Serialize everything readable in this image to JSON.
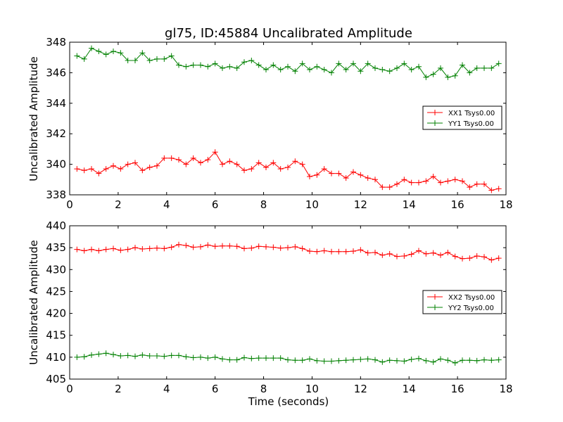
{
  "chart_data": [
    {
      "type": "line",
      "title": "gl75, ID:45884 Uncalibrated Amplitude",
      "xlabel": "",
      "ylabel": "Uncalibrated Amplitude",
      "xlim": [
        0,
        18
      ],
      "ylim": [
        338,
        348
      ],
      "xticks": [
        0,
        2,
        4,
        6,
        8,
        10,
        12,
        14,
        16,
        18
      ],
      "yticks": [
        338,
        340,
        342,
        344,
        346,
        348
      ],
      "legend_position": "center-right",
      "grid": false,
      "x": [
        0.3,
        0.6,
        0.9,
        1.2,
        1.5,
        1.8,
        2.1,
        2.4,
        2.7,
        3.0,
        3.3,
        3.6,
        3.9,
        4.2,
        4.5,
        4.8,
        5.1,
        5.4,
        5.7,
        6.0,
        6.3,
        6.6,
        6.9,
        7.2,
        7.5,
        7.8,
        8.1,
        8.4,
        8.7,
        9.0,
        9.3,
        9.6,
        9.9,
        10.2,
        10.5,
        10.8,
        11.1,
        11.4,
        11.7,
        12.0,
        12.3,
        12.6,
        12.9,
        13.2,
        13.5,
        13.8,
        14.1,
        14.4,
        14.7,
        15.0,
        15.3,
        15.6,
        15.9,
        16.2,
        16.5,
        16.8,
        17.1,
        17.4,
        17.7
      ],
      "series": [
        {
          "name": "XX1 Tsys0.00",
          "color": "#ff0000",
          "values": [
            339.7,
            339.6,
            339.7,
            339.4,
            339.7,
            339.9,
            339.7,
            340.0,
            340.1,
            339.6,
            339.8,
            339.9,
            340.4,
            340.4,
            340.3,
            340.0,
            340.4,
            340.1,
            340.3,
            340.8,
            340.0,
            340.2,
            340.0,
            339.6,
            339.7,
            340.1,
            339.8,
            340.1,
            339.7,
            339.8,
            340.2,
            340.0,
            339.2,
            339.3,
            339.7,
            339.4,
            339.4,
            339.1,
            339.5,
            339.3,
            339.1,
            339.0,
            338.5,
            338.5,
            338.7,
            339.0,
            338.8,
            338.8,
            338.9,
            339.2,
            338.8,
            338.9,
            339.0,
            338.9,
            338.5,
            338.7,
            338.7,
            338.3,
            338.4
          ]
        },
        {
          "name": "YY1 Tsys0.00",
          "color": "#008000",
          "values": [
            347.1,
            346.9,
            347.6,
            347.4,
            347.2,
            347.4,
            347.3,
            346.8,
            346.8,
            347.3,
            346.8,
            346.9,
            346.9,
            347.1,
            346.5,
            346.4,
            346.5,
            346.5,
            346.4,
            346.6,
            346.3,
            346.4,
            346.3,
            346.7,
            346.8,
            346.5,
            346.2,
            346.5,
            346.2,
            346.4,
            346.1,
            346.6,
            346.2,
            346.4,
            346.2,
            346.0,
            346.6,
            346.2,
            346.6,
            346.1,
            346.6,
            346.3,
            346.2,
            346.1,
            346.3,
            346.6,
            346.2,
            346.4,
            345.7,
            345.9,
            346.3,
            345.7,
            345.8,
            346.5,
            346.0,
            346.3,
            346.3,
            346.3,
            346.6
          ]
        }
      ]
    },
    {
      "type": "line",
      "title": "",
      "xlabel": "Time (seconds)",
      "ylabel": "Uncalibrated Amplitude",
      "xlim": [
        0,
        18
      ],
      "ylim": [
        405,
        440
      ],
      "xticks": [
        0,
        2,
        4,
        6,
        8,
        10,
        12,
        14,
        16,
        18
      ],
      "yticks": [
        405,
        410,
        415,
        420,
        425,
        430,
        435,
        440
      ],
      "legend_position": "center-right",
      "grid": false,
      "x": [
        0.3,
        0.6,
        0.9,
        1.2,
        1.5,
        1.8,
        2.1,
        2.4,
        2.7,
        3.0,
        3.3,
        3.6,
        3.9,
        4.2,
        4.5,
        4.8,
        5.1,
        5.4,
        5.7,
        6.0,
        6.3,
        6.6,
        6.9,
        7.2,
        7.5,
        7.8,
        8.1,
        8.4,
        8.7,
        9.0,
        9.3,
        9.6,
        9.9,
        10.2,
        10.5,
        10.8,
        11.1,
        11.4,
        11.7,
        12.0,
        12.3,
        12.6,
        12.9,
        13.2,
        13.5,
        13.8,
        14.1,
        14.4,
        14.7,
        15.0,
        15.3,
        15.6,
        15.9,
        16.2,
        16.5,
        16.8,
        17.1,
        17.4,
        17.7
      ],
      "series": [
        {
          "name": "XX2 Tsys0.00",
          "color": "#ff0000",
          "values": [
            434.6,
            434.3,
            434.6,
            434.3,
            434.6,
            434.8,
            434.4,
            434.6,
            435.0,
            434.7,
            434.8,
            434.9,
            434.8,
            435.1,
            435.7,
            435.5,
            435.1,
            435.2,
            435.6,
            435.3,
            435.4,
            435.4,
            435.3,
            434.8,
            434.9,
            435.3,
            435.2,
            435.1,
            434.9,
            435.0,
            435.2,
            434.8,
            434.2,
            434.1,
            434.3,
            434.1,
            434.1,
            434.1,
            434.2,
            434.5,
            433.8,
            433.9,
            433.3,
            433.6,
            433.0,
            433.1,
            433.5,
            434.3,
            433.6,
            433.8,
            433.3,
            433.9,
            433.0,
            432.5,
            432.6,
            433.1,
            432.9,
            432.2,
            432.6
          ]
        },
        {
          "name": "YY2 Tsys0.00",
          "color": "#008000",
          "values": [
            410.0,
            410.1,
            410.5,
            410.7,
            410.9,
            410.6,
            410.3,
            410.4,
            410.2,
            410.5,
            410.3,
            410.3,
            410.2,
            410.4,
            410.4,
            410.1,
            409.9,
            410.0,
            409.8,
            410.0,
            409.6,
            409.4,
            409.4,
            409.9,
            409.7,
            409.8,
            409.8,
            409.8,
            409.8,
            409.4,
            409.3,
            409.3,
            409.6,
            409.2,
            409.1,
            409.1,
            409.2,
            409.3,
            409.4,
            409.5,
            409.6,
            409.4,
            408.9,
            409.3,
            409.2,
            409.1,
            409.5,
            409.7,
            409.2,
            408.9,
            409.6,
            409.3,
            408.7,
            409.3,
            409.3,
            409.2,
            409.4,
            409.3,
            409.4
          ]
        }
      ]
    }
  ]
}
